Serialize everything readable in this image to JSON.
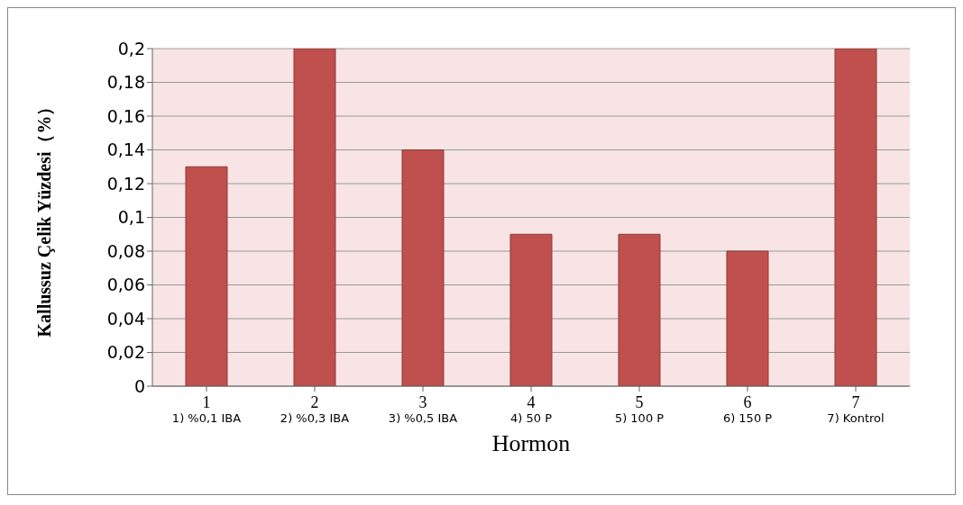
{
  "chart_data": {
    "type": "bar",
    "xlabel": "Hormon",
    "ylabel": "Kallussuz Çelik Yüzdesi（%）",
    "categories": [
      "1\n1) %0,1 IBA",
      "2\n2) %0,3 IBA",
      "3\n3) %0,5 IBA",
      "4\n4) 50 P",
      "5\n5) 100 P",
      "6\n6) 150 P",
      "7\n7) Kontrol"
    ],
    "values": [
      0.13,
      0.2,
      0.14,
      0.09,
      0.09,
      0.08,
      0.2
    ],
    "color": "#c0504d",
    "ylim": [
      0,
      0.2
    ],
    "yticks": [
      0,
      {
        "value": 0.02,
        "label": "0,02"
      },
      {
        "value": 0.04,
        "label": "0,04"
      },
      {
        "value": 0.06,
        "label": "0,06"
      },
      {
        "value": 0.08,
        "label": "0,08"
      },
      {
        "value": 0.1,
        "label": "0,1"
      },
      {
        "value": 0.12,
        "label": "0,12"
      },
      {
        "value": 0.14,
        "label": "0,14"
      },
      {
        "value": 0.16,
        "label": "0,16"
      },
      {
        "value": 0.18,
        "label": "0,18"
      },
      {
        "value": 0.2,
        "label": "0,2"
      }
    ],
    "grid": "y",
    "legend": false
  }
}
